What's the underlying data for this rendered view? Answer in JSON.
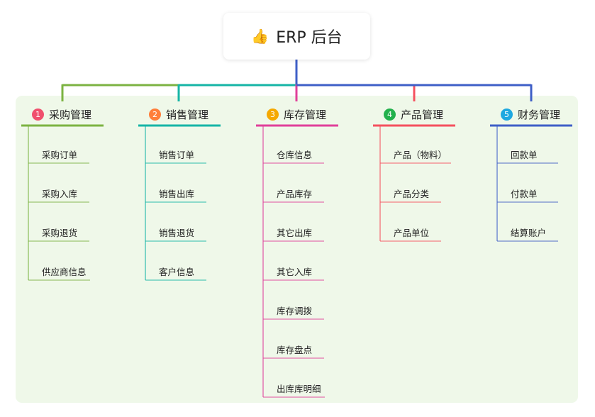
{
  "root": {
    "title": "ERP 后台",
    "icon": "thumbs-up-icon"
  },
  "branches": [
    {
      "index": "1",
      "label": "采购管理",
      "color": "#7cb342",
      "badge_color": "#f0506e",
      "children": [
        "采购订单",
        "采购入库",
        "采购退货",
        "供应商信息"
      ]
    },
    {
      "index": "2",
      "label": "销售管理",
      "color": "#16b5a6",
      "badge_color": "#ff7e3a",
      "children": [
        "销售订单",
        "销售出库",
        "销售退货",
        "客户信息"
      ]
    },
    {
      "index": "3",
      "label": "库存管理",
      "color": "#e0409a",
      "badge_color": "#f5a800",
      "children": [
        "仓库信息",
        "产品库存",
        "其它出库",
        "其它入库",
        "库存调拨",
        "库存盘点",
        "出库库明细"
      ]
    },
    {
      "index": "4",
      "label": "产品管理",
      "color": "#f5515f",
      "badge_color": "#22b14c",
      "children": [
        "产品（物料）",
        "产品分类",
        "产品单位"
      ]
    },
    {
      "index": "5",
      "label": "财务管理",
      "color": "#3f5fc7",
      "badge_color": "#1ea8e0",
      "children": [
        "回款单",
        "付款单",
        "结算账户"
      ]
    }
  ]
}
